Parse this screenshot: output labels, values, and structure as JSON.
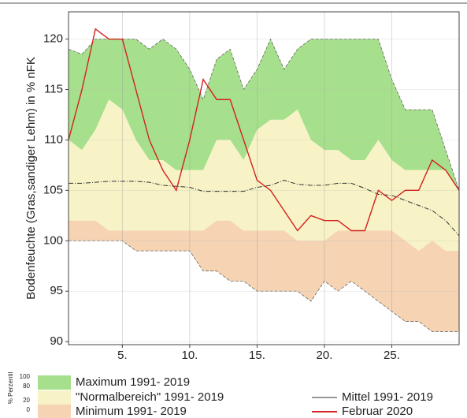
{
  "chart_data": {
    "type": "band_line",
    "y_label": "Bodenfeuchte (Gras,sandiger Lehm) in % nFK",
    "x": [
      1,
      2,
      3,
      4,
      5,
      6,
      7,
      8,
      9,
      10,
      11,
      12,
      13,
      14,
      15,
      16,
      17,
      18,
      19,
      20,
      21,
      22,
      23,
      24,
      25,
      26,
      27,
      28,
      29,
      30
    ],
    "xlim": [
      1,
      30
    ],
    "xticks": [
      {
        "value": 5,
        "label": "5."
      },
      {
        "value": 10,
        "label": "10."
      },
      {
        "value": 15,
        "label": "15."
      },
      {
        "value": 20,
        "label": "20."
      },
      {
        "value": 25,
        "label": "25."
      }
    ],
    "ylim": [
      89.7,
      122.7
    ],
    "yticks": [
      90,
      95,
      100,
      105,
      110,
      115,
      120
    ],
    "grid": true,
    "bands": [
      {
        "name": "Maximum 1991- 2019",
        "color": "#a6e08c",
        "values": [
          119,
          118.5,
          120,
          120,
          120,
          120,
          119,
          120,
          119,
          117,
          114,
          118,
          119,
          115,
          117,
          120,
          117,
          119,
          120,
          120,
          120,
          120,
          120,
          120,
          116,
          113,
          113,
          113,
          109,
          105
        ]
      },
      {
        "name": "\"Normalbereich\" 1991- 2019",
        "color": "#f7f3c6",
        "values": [
          110,
          109,
          111,
          114,
          113,
          110,
          108,
          108,
          107,
          107,
          107,
          110,
          110,
          108,
          111,
          112,
          112,
          113,
          110,
          109,
          109,
          108,
          108,
          110,
          108,
          107,
          107,
          107,
          107,
          105
        ]
      },
      {
        "name": "Minimum 1991- 2019",
        "color": "#f5d3b3",
        "values": [
          102,
          102,
          102,
          101,
          101,
          101,
          101,
          101,
          101,
          101,
          101,
          102,
          102,
          101,
          101,
          101,
          101,
          100,
          100,
          100,
          101,
          101,
          101,
          101,
          101,
          100,
          99,
          100,
          99,
          99
        ]
      }
    ],
    "band_floor": [
      100,
      100,
      100,
      100,
      100,
      99,
      99,
      99,
      99,
      99,
      97,
      97,
      96,
      96,
      95,
      95,
      95,
      95,
      94,
      96,
      95,
      96,
      95,
      94,
      93,
      92,
      92,
      91,
      91,
      91
    ],
    "series": [
      {
        "name": "Mittel 1991- 2019",
        "color": "#333333",
        "dash": "6 2 1 2",
        "values": [
          105.7,
          105.7,
          105.8,
          105.9,
          105.9,
          105.9,
          105.8,
          105.5,
          105.4,
          105.3,
          104.9,
          104.9,
          104.9,
          104.9,
          105.3,
          105.5,
          106,
          105.6,
          105.5,
          105.5,
          105.7,
          105.7,
          105.2,
          104.6,
          104.5,
          104,
          103.5,
          103,
          102,
          100.5
        ]
      },
      {
        "name": "Februar 2020",
        "color": "#d42020",
        "dash": "",
        "values": [
          110,
          115,
          121,
          120,
          120,
          115,
          110,
          107,
          105,
          110,
          116,
          114,
          114,
          110,
          106,
          105,
          103,
          101,
          102.5,
          102,
          102,
          101,
          101,
          105,
          104,
          105,
          105,
          108,
          107,
          105
        ]
      }
    ],
    "percentile_label": "% Perzentil",
    "percentile_ticks": [
      100,
      80,
      20,
      0
    ]
  }
}
